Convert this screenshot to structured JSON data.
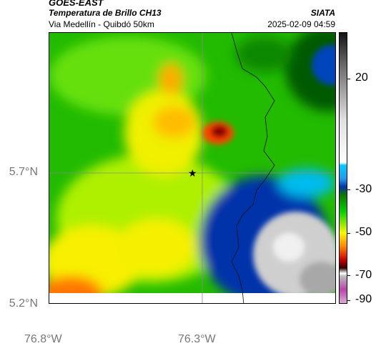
{
  "header": {
    "title": "GOES-EAST",
    "subtitle": "Temperatura de Brillo CH13",
    "description": "Via Medellín - Quibdó 50km",
    "org": "SIATA",
    "timestamp": "2025-02-09 04:59"
  },
  "axes": {
    "lat_labels": [
      "5.7°N",
      "5.2°N"
    ],
    "lon_labels": [
      "76.8°W",
      "76.3°W"
    ]
  },
  "colorbar": {
    "ticks": [
      "20",
      "-30",
      "-50",
      "-70",
      "-90"
    ],
    "colors": {
      "dark": "#141414",
      "gray": "#bdbdbd",
      "cyan": "#00ccff",
      "blue": "#0033aa",
      "green": "#00d000",
      "yellow": "#f8f800",
      "orange": "#ff8800",
      "red": "#cc0000",
      "magenta": "#bb44aa"
    }
  },
  "map": {
    "marker": "star-icon"
  }
}
